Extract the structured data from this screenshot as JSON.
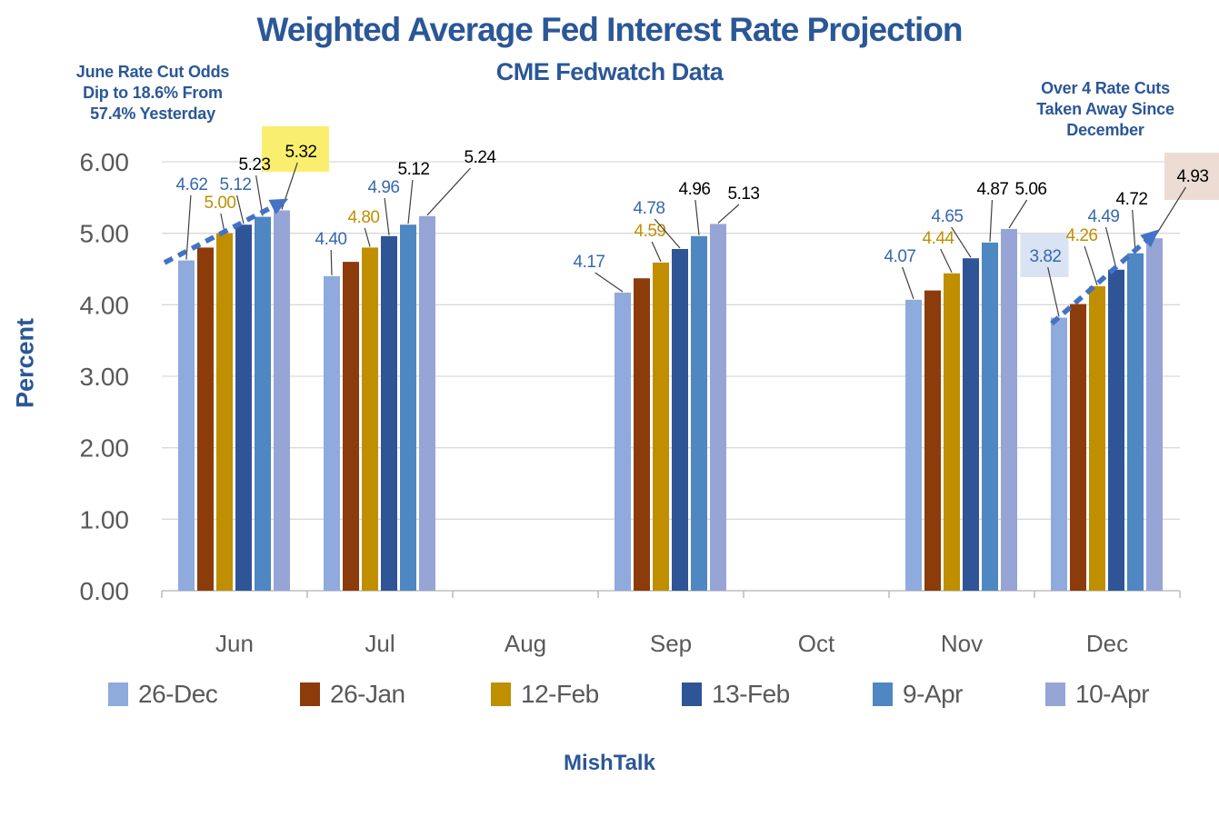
{
  "chart_data": {
    "type": "bar",
    "title": "Weighted Average Fed Interest Rate Projection",
    "subtitle": "CME Fedwatch Data",
    "xlabel": "",
    "ylabel": "Percent",
    "ylim": [
      0,
      6
    ],
    "ytick_step": 1.0,
    "ytick_labels": [
      "0.00",
      "1.00",
      "2.00",
      "3.00",
      "4.00",
      "5.00",
      "6.00"
    ],
    "grid": true,
    "legend_position": "bottom",
    "categories": [
      "Jun",
      "Jul",
      "Aug",
      "Sep",
      "Oct",
      "Nov",
      "Dec"
    ],
    "series": [
      {
        "name": "26-Dec",
        "color": "#8faadc",
        "label_color": "#3767b0",
        "show_labels": true,
        "values": [
          4.62,
          4.4,
          null,
          4.17,
          null,
          4.07,
          3.82
        ]
      },
      {
        "name": "26-Jan",
        "color": "#8c3b0b",
        "label_color": null,
        "show_labels": false,
        "values": [
          4.8,
          4.6,
          null,
          4.37,
          null,
          4.2,
          4.01
        ]
      },
      {
        "name": "12-Feb",
        "color": "#bf8f00",
        "label_color": "#bf8f00",
        "show_labels": true,
        "values": [
          5.0,
          4.8,
          null,
          4.59,
          null,
          4.44,
          4.26
        ]
      },
      {
        "name": "13-Feb",
        "color": "#2f5597",
        "label_color": "#3767b0",
        "show_labels": true,
        "values": [
          5.12,
          4.96,
          null,
          4.78,
          null,
          4.65,
          4.49
        ]
      },
      {
        "name": "9-Apr",
        "color": "#4e87c1",
        "label_color": "#000000",
        "show_labels": true,
        "values": [
          5.23,
          5.12,
          null,
          4.96,
          null,
          4.87,
          4.72
        ]
      },
      {
        "name": "10-Apr",
        "color": "#97a4d6",
        "label_color": "#000000",
        "show_labels": true,
        "values": [
          5.32,
          5.24,
          null,
          5.13,
          null,
          5.06,
          4.93
        ]
      }
    ],
    "label_highlights": [
      {
        "category": "Jun",
        "series": "10-Apr",
        "value": "5.32",
        "color": "#faee6e"
      },
      {
        "category": "Dec",
        "series": "26-Dec",
        "value": "3.82",
        "color": "#dae3f3"
      },
      {
        "category": "Dec",
        "series": "10-Apr",
        "value": "4.93",
        "color": "#ecdcd3"
      }
    ],
    "trend_arrows": [
      {
        "category": "Jun",
        "from_series": "26-Dec",
        "to_series": "10-Apr",
        "color": "#4472c4",
        "style": "dashed"
      },
      {
        "category": "Dec",
        "from_series": "26-Dec",
        "to_series": "10-Apr",
        "color": "#4472c4",
        "style": "dashed"
      }
    ],
    "annotations": {
      "left": "June Rate Cut Odds\nDip to 18.6% From\n57.4% Yesterday",
      "right": "Over 4 Rate Cuts\nTaken Away Since\nDecember"
    },
    "credit": "MishTalk",
    "colors": {
      "title": "#2b5797",
      "axis_text": "#595959",
      "gridline": "#d9d9d9",
      "axis_line": "#bfbfbf",
      "leader_line": "#404040"
    }
  }
}
